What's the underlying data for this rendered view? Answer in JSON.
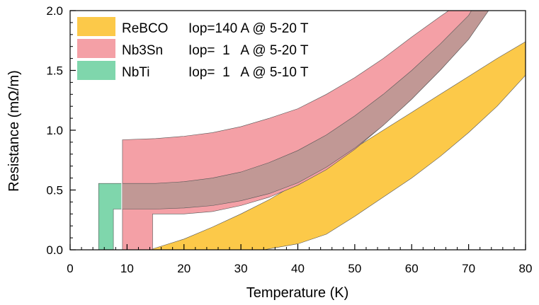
{
  "chart_data": {
    "type": "area",
    "xlabel": "Temperature (K)",
    "ylabel": "Resistance (mΩ/m)",
    "xlim": [
      0,
      80
    ],
    "ylim": [
      0,
      2.0
    ],
    "xticks": [
      0,
      10,
      20,
      30,
      40,
      50,
      60,
      70,
      80
    ],
    "xtick_labels": [
      "0",
      "10",
      "20",
      "30",
      "40",
      "50",
      "60",
      "70",
      "80"
    ],
    "yticks": [
      0,
      0.5,
      1.0,
      1.5,
      2.0
    ],
    "ytick_labels": [
      "0.0",
      "0.5",
      "1.0",
      "1.5",
      "2.0"
    ],
    "grid": false,
    "legend_position": "top-left",
    "series": [
      {
        "name": "NbTi",
        "label": "NbTi",
        "spec": "Iop=  1   A @ 5-10 T",
        "color": "#7fd6ac",
        "upper": [
          [
            5.0,
            0.0
          ],
          [
            5.0,
            0.555
          ],
          [
            9.0,
            0.555
          ]
        ],
        "lower": [
          [
            7.6,
            0.0
          ],
          [
            7.6,
            0.34
          ],
          [
            9.0,
            0.34
          ]
        ]
      },
      {
        "name": "ReBCO",
        "label": "ReBCO",
        "spec": "Iop=140 A @ 5-20 T",
        "color": "#fcc949",
        "upper": [
          [
            14.0,
            0.0
          ],
          [
            20,
            0.09
          ],
          [
            25,
            0.19
          ],
          [
            30,
            0.3
          ],
          [
            35,
            0.42
          ],
          [
            40,
            0.56
          ],
          [
            45,
            0.7
          ],
          [
            50,
            0.85
          ],
          [
            55,
            1.0
          ],
          [
            60,
            1.15
          ],
          [
            65,
            1.3
          ],
          [
            70,
            1.45
          ],
          [
            75,
            1.6
          ],
          [
            80,
            1.74
          ]
        ],
        "lower": [
          [
            34.0,
            0.0
          ],
          [
            40,
            0.05
          ],
          [
            45,
            0.13
          ],
          [
            50,
            0.28
          ],
          [
            55,
            0.44
          ],
          [
            60,
            0.6
          ],
          [
            65,
            0.78
          ],
          [
            70,
            0.98
          ],
          [
            75,
            1.2
          ],
          [
            80,
            1.46
          ]
        ]
      },
      {
        "name": "Nb3Sn",
        "label": "Nb3Sn",
        "spec": "Iop=  1   A @ 5-20 T",
        "color": "#f4a0a6",
        "upper": [
          [
            9.2,
            0.0
          ],
          [
            9.2,
            0.92
          ],
          [
            15,
            0.93
          ],
          [
            20,
            0.95
          ],
          [
            25,
            0.98
          ],
          [
            30,
            1.03
          ],
          [
            35,
            1.1
          ],
          [
            40,
            1.18
          ],
          [
            45,
            1.3
          ],
          [
            50,
            1.44
          ],
          [
            55,
            1.6
          ],
          [
            60,
            1.78
          ],
          [
            65,
            1.95
          ],
          [
            66.5,
            2.0
          ]
        ],
        "lower": [
          [
            14.5,
            0.0
          ],
          [
            14.5,
            0.3
          ],
          [
            20,
            0.3
          ],
          [
            25,
            0.32
          ],
          [
            30,
            0.37
          ],
          [
            35,
            0.44
          ],
          [
            40,
            0.54
          ],
          [
            45,
            0.67
          ],
          [
            50,
            0.84
          ],
          [
            55,
            1.04
          ],
          [
            60,
            1.26
          ],
          [
            65,
            1.5
          ],
          [
            70,
            1.76
          ],
          [
            73.5,
            2.0
          ]
        ]
      },
      {
        "name": "overlap-band",
        "color": "#c19895",
        "upper": [
          [
            9.2,
            0.555
          ],
          [
            15,
            0.555
          ],
          [
            20,
            0.57
          ],
          [
            25,
            0.6
          ],
          [
            30,
            0.65
          ],
          [
            35,
            0.73
          ],
          [
            40,
            0.83
          ],
          [
            45,
            0.96
          ],
          [
            50,
            1.12
          ],
          [
            55,
            1.3
          ],
          [
            60,
            1.5
          ],
          [
            65,
            1.72
          ],
          [
            70,
            1.96
          ],
          [
            70.5,
            2.0
          ]
        ],
        "lower": [
          [
            9.2,
            0.34
          ],
          [
            15,
            0.34
          ],
          [
            20,
            0.35
          ],
          [
            25,
            0.37
          ],
          [
            30,
            0.41
          ],
          [
            35,
            0.47
          ],
          [
            40,
            0.56
          ],
          [
            45,
            0.69
          ],
          [
            50,
            0.85
          ],
          [
            55,
            1.04
          ],
          [
            60,
            1.26
          ],
          [
            65,
            1.5
          ],
          [
            70,
            1.76
          ],
          [
            73.5,
            2.0
          ]
        ]
      }
    ]
  }
}
